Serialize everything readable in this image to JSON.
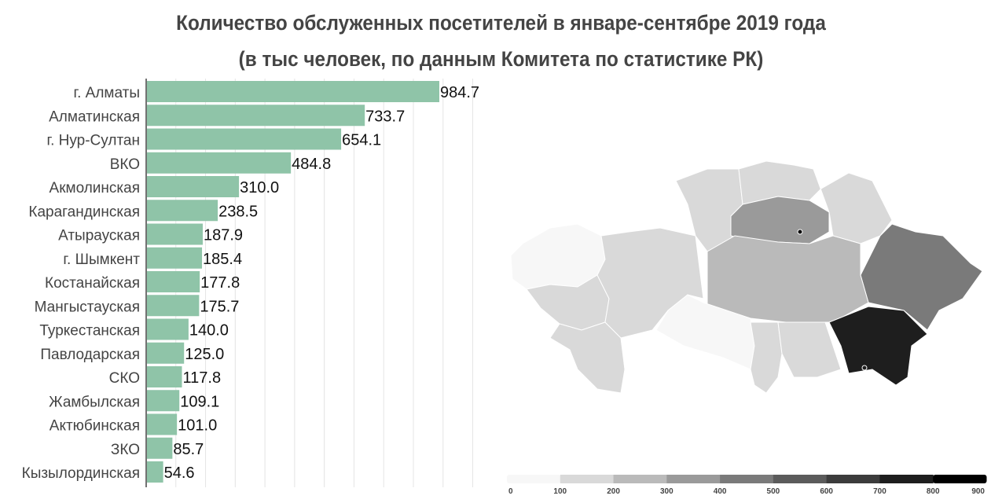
{
  "chart_data": {
    "type": "bar",
    "title": "Количество обслуженных посетителей в январе-сентябре 2019 года",
    "subtitle": "(в тыс человек, по данным Комитета по статистике РК)",
    "categories": [
      "г. Алматы",
      "Алматинская",
      "г. Нур-Султан",
      "ВКО",
      "Акмолинская",
      "Карагандинская",
      "Атырауская",
      "г. Шымкент",
      "Костанайская",
      "Мангыстауская",
      "Туркестанская",
      "Павлодарская",
      "СКО",
      "Жамбылская",
      "Актюбинская",
      "ЗКО",
      "Кызылординская"
    ],
    "values": [
      984.7,
      733.7,
      654.1,
      484.8,
      310.0,
      238.5,
      187.9,
      185.4,
      177.8,
      175.7,
      140.0,
      125.0,
      117.8,
      109.1,
      101.0,
      85.7,
      54.6
    ],
    "bar_color": "#8fc4a8",
    "xlim": [
      0,
      1100
    ],
    "grid": true,
    "legend": {
      "type": "choropleth-scale",
      "ticks": [
        "0",
        "100",
        "200",
        "300",
        "400",
        "500",
        "600",
        "700",
        "800",
        "900"
      ],
      "colors": [
        "#f7f7f7",
        "#d9d9d9",
        "#bababa",
        "#9a9a9a",
        "#7a7a7a",
        "#5b5b5b",
        "#3c3c3c",
        "#1e1e1e",
        "#000000"
      ]
    }
  }
}
